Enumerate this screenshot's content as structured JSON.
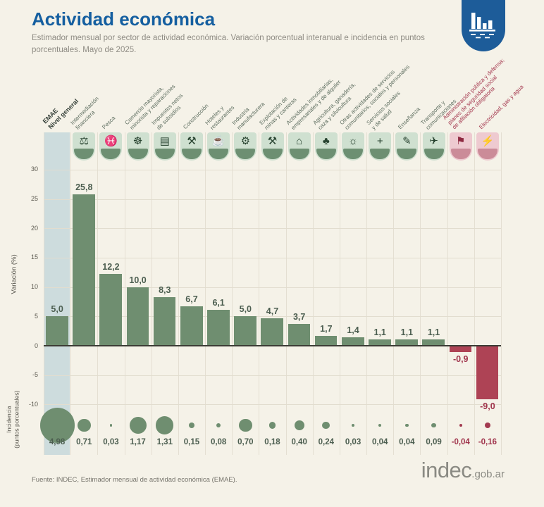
{
  "header": {
    "title": "Actividad económica",
    "subtitle": "Estimador mensual por sector de actividad económica. Variación porcentual interanual e incidencia en puntos porcentuales. Mayo de 2025."
  },
  "footer": {
    "source": "Fuente: INDEC, Estimador mensual de actividad económica (EMAE).",
    "logo_main": "indec",
    "logo_suffix": ".gob.ar"
  },
  "colors": {
    "background": "#f5f2e8",
    "title_blue": "#155fa0",
    "badge_blue": "#1d5c99",
    "positive_bar": "#6f8e70",
    "negative_bar": "#ae4355",
    "positive_label": "#4c5e50",
    "negative_label": "#a0344c",
    "category_green": "#5f6f61",
    "category_red": "#a4374e",
    "highlight_band": "#cddcdd",
    "circle_green": "#6f8e70",
    "circle_red": "#a23a50"
  },
  "chart_data": {
    "type": "bar",
    "title": "Actividad económica",
    "subtitle": "Estimador mensual por sector de actividad económica. Variación porcentual interanual e incidencia en puntos porcentuales.",
    "period": "Mayo de 2025",
    "ylabel": "Variación (%)",
    "ylabel_secondary": "Incidencia\n(puntos porcentuales)",
    "yticks": [
      30,
      25,
      20,
      15,
      10,
      5,
      0,
      -5,
      -10
    ],
    "ylim": [
      -12,
      33
    ],
    "grid": true,
    "legend_position": "none",
    "highlight_index": 0,
    "categories": [
      "EMAE\nNivel general",
      "Intermediación\nfinanciera",
      "Pesca",
      "Comercio mayorista,\nminorista y reparaciones",
      "Impuestos netos\nde subsidios",
      "Construcción",
      "Hoteles y\nrestaurantes",
      "Industria\nmanufacturera",
      "Explotación de\nminas y canteras",
      "Actividades inmobiliarias,\nempresariales y de alquiler",
      "Agricultura, ganadería,\ncaza y silvicultura",
      "Otras actividades de servicios\ncomunitarios, sociales y personales",
      "Servicios sociales\ny de salud",
      "Enseñanza",
      "Transporte y\ncomunicaciones",
      "Administración pública y defensa;\nplanes de seguridad social\nde afiliación obligatoria",
      "Electricidad, gas y agua"
    ],
    "series": [
      {
        "name": "Variación porcentual interanual (%)",
        "values": [
          5.0,
          25.8,
          12.2,
          10.0,
          8.3,
          6.7,
          6.1,
          5.0,
          4.7,
          3.7,
          1.7,
          1.4,
          1.1,
          1.1,
          1.1,
          -0.9,
          -9.0
        ]
      },
      {
        "name": "Incidencia (puntos porcentuales)",
        "values": [
          4.98,
          0.71,
          0.03,
          1.17,
          1.31,
          0.15,
          0.08,
          0.7,
          0.18,
          0.4,
          0.24,
          0.03,
          0.04,
          0.04,
          0.09,
          -0.04,
          -0.16
        ]
      }
    ],
    "value_labels": [
      "5,0",
      "25,8",
      "12,2",
      "10,0",
      "8,3",
      "6,7",
      "6,1",
      "5,0",
      "4,7",
      "3,7",
      "1,7",
      "1,4",
      "1,1",
      "1,1",
      "1,1",
      "-0,9",
      "-9,0"
    ],
    "incidence_labels": [
      "4,98",
      "0,71",
      "0,03",
      "1,17",
      "1,31",
      "0,15",
      "0,08",
      "0,70",
      "0,18",
      "0,40",
      "0,24",
      "0,03",
      "0,04",
      "0,04",
      "0,09",
      "-0,04",
      "-0,16"
    ],
    "icons": [
      {
        "name": "none",
        "glyph": "",
        "theme": "green"
      },
      {
        "name": "bank-columns-icon",
        "glyph": "⚖",
        "theme": "green"
      },
      {
        "name": "fish-icon",
        "glyph": "♓",
        "theme": "green"
      },
      {
        "name": "commerce-truck-icon",
        "glyph": "☸",
        "theme": "green"
      },
      {
        "name": "tax-documents-icon",
        "glyph": "▤",
        "theme": "green"
      },
      {
        "name": "construction-machine-icon",
        "glyph": "⚒",
        "theme": "green"
      },
      {
        "name": "hotel-restaurant-icon",
        "glyph": "☕",
        "theme": "green"
      },
      {
        "name": "industry-gears-icon",
        "glyph": "⚙",
        "theme": "green"
      },
      {
        "name": "oil-pump-icon",
        "glyph": "⚒",
        "theme": "green"
      },
      {
        "name": "real-estate-key-icon",
        "glyph": "⌂",
        "theme": "green"
      },
      {
        "name": "agriculture-icon",
        "glyph": "♣",
        "theme": "green"
      },
      {
        "name": "community-services-icon",
        "glyph": "☼",
        "theme": "green"
      },
      {
        "name": "health-cross-icon",
        "glyph": "+",
        "theme": "green"
      },
      {
        "name": "school-icon",
        "glyph": "✎",
        "theme": "green"
      },
      {
        "name": "transport-comms-icon",
        "glyph": "✈",
        "theme": "green"
      },
      {
        "name": "government-building-icon",
        "glyph": "⚑",
        "theme": "red"
      },
      {
        "name": "electricity-plant-icon",
        "glyph": "⚡",
        "theme": "red"
      }
    ]
  }
}
